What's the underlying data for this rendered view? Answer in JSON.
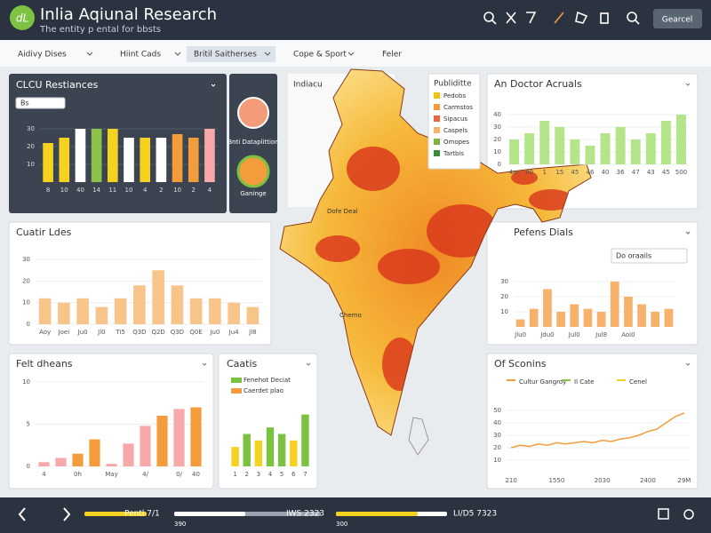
{
  "header": {
    "logo": "dL",
    "title": "Inlia Aqiunal Research",
    "subtitle": "The entity p ental for bbsts",
    "button": "Gearcel"
  },
  "toolbar": [
    "Aidivy Dises",
    "Hiint Cads",
    "Britil Saitherses",
    "Cope & Sport",
    "Feler"
  ],
  "side": {
    "labels": [
      "Bnti Dataplittion",
      "Ganinge"
    ]
  },
  "map": {
    "title": "Indiacu",
    "labels": [
      "Dofe Deal",
      "Chemo"
    ],
    "legend": {
      "title": "Publiditte",
      "items": [
        {
          "name": "Pedobs",
          "color": "#f4c20d"
        },
        {
          "name": "Carmstos",
          "color": "#f39c3c"
        },
        {
          "name": "Sipacus",
          "color": "#e8663a"
        },
        {
          "name": "Caspels",
          "color": "#f6b26b"
        },
        {
          "name": "Omopes",
          "color": "#7cb342"
        },
        {
          "name": "Tartbis",
          "color": "#3d8b3d"
        }
      ]
    }
  },
  "panels": [
    {
      "type": "bar",
      "title": "CLCU Restiances",
      "dropdown": "Bs",
      "categories": [
        "8",
        "10",
        "40",
        "14",
        "11",
        "10",
        "4",
        "2",
        "10",
        "2",
        "4"
      ],
      "values": [
        22,
        25,
        30,
        30,
        30,
        25,
        25,
        25,
        27,
        25,
        30
      ],
      "colors": [
        "#f4d21f",
        "#f4d21f",
        "#ffffff",
        "#8bc34a",
        "#f4d21f",
        "#ffffff",
        "#f4d21f",
        "#ffffff",
        "#f39c3c",
        "#f39c3c",
        "#f7a8a8"
      ],
      "ylim": [
        0,
        40
      ],
      "yticks": [
        10,
        20,
        30
      ]
    },
    {
      "type": "bar",
      "title": "An Doctor Acruals",
      "categories": [
        "4ar",
        "80",
        "1",
        "15",
        "45",
        "46",
        "40",
        "36",
        "47",
        "43",
        "45",
        "500"
      ],
      "values": [
        20,
        25,
        35,
        30,
        20,
        15,
        25,
        30,
        20,
        25,
        35,
        40
      ],
      "color": "#b5e58a",
      "ylim": [
        0,
        50
      ],
      "yticks": [
        0,
        10,
        20,
        30,
        40
      ]
    },
    {
      "type": "bar",
      "title": "Cuatir Ldes",
      "categories": [
        "Aoy",
        "Joei",
        "Ju0",
        "Jl0",
        "Ti5",
        "Q3D",
        "Q2D",
        "Q3D",
        "Q0E",
        "Ju0",
        "Ju4",
        "Jl8"
      ],
      "values": [
        12,
        10,
        12,
        8,
        12,
        18,
        25,
        18,
        12,
        12,
        10,
        8
      ],
      "color": "#f7c48a",
      "ylim": [
        0,
        35
      ],
      "yticks": [
        0,
        10,
        20,
        30
      ]
    },
    {
      "type": "bar",
      "title": "Pefens Dials",
      "dropdown": "Do oraails",
      "categories": [
        "Jlu0",
        null,
        "Jdu0",
        null,
        "Jul0",
        null,
        "Jul8",
        null,
        "Aoi0",
        null,
        null,
        null
      ],
      "values": [
        5,
        12,
        25,
        10,
        15,
        12,
        10,
        30,
        20,
        15,
        10,
        12
      ],
      "color": "#f6b26b",
      "ylim": [
        0,
        40
      ],
      "yticks": [
        10,
        20,
        30
      ]
    },
    {
      "type": "bar",
      "title": "Felt dheans",
      "categories": [
        "4",
        null,
        "0h",
        null,
        "May",
        null,
        "4/",
        null,
        "0/",
        "40"
      ],
      "values": [
        0.5,
        1,
        1.5,
        3.2,
        0.3,
        2.7,
        4.8,
        6,
        6.8,
        7
      ],
      "colors": [
        "#f7a8a8",
        "#f7a8a8",
        "#f39c3c",
        "#f39c3c",
        "#f7a8a8",
        "#f7a8a8",
        "#f7a8a8",
        "#f39c3c",
        "#f7a8a8",
        "#f39c3c"
      ],
      "ylim": [
        0,
        10
      ],
      "yticks": [
        0,
        5,
        10
      ]
    },
    {
      "type": "bar",
      "title": "Caatis",
      "legend": [
        {
          "name": "Fenehot Deciat",
          "color": "#7cc242"
        },
        {
          "name": "Caerdet plao",
          "color": "#f39c3c"
        }
      ],
      "categories": [
        "1",
        "2",
        "3",
        "4",
        "5",
        "6",
        "7"
      ],
      "values": [
        3,
        5,
        4,
        6,
        5,
        4,
        8
      ],
      "colors": [
        "#f4d21f",
        "#7cc242",
        "#f4d21f",
        "#7cc242",
        "#7cc242",
        "#f4d21f",
        "#7cc242"
      ],
      "ylim": [
        0,
        10
      ],
      "yticks": []
    },
    {
      "type": "line",
      "title": "Of Sconins",
      "legend": [
        {
          "name": "Cultur Gangroy",
          "color": "#f39c3c"
        },
        {
          "name": "Il Cate",
          "color": "#8bc34a"
        },
        {
          "name": "Cenel",
          "color": "#f4d21f"
        }
      ],
      "categories": [
        "210",
        null,
        null,
        null,
        null,
        "1550",
        null,
        null,
        null,
        null,
        "2030",
        null,
        null,
        null,
        null,
        "2400",
        null,
        null,
        null,
        "29M"
      ],
      "values": [
        20,
        22,
        21,
        23,
        22,
        24,
        23,
        24,
        25,
        24,
        26,
        25,
        27,
        28,
        30,
        33,
        35,
        40,
        45,
        48
      ],
      "color": "#f39c3c",
      "ylim": [
        0,
        60
      ],
      "yticks": [
        10,
        20,
        30,
        40,
        50
      ]
    }
  ],
  "footer": {
    "labels": [
      "Pentl 7/1",
      "390",
      "IWS 2323",
      "300",
      "LI/D5 7323"
    ]
  }
}
